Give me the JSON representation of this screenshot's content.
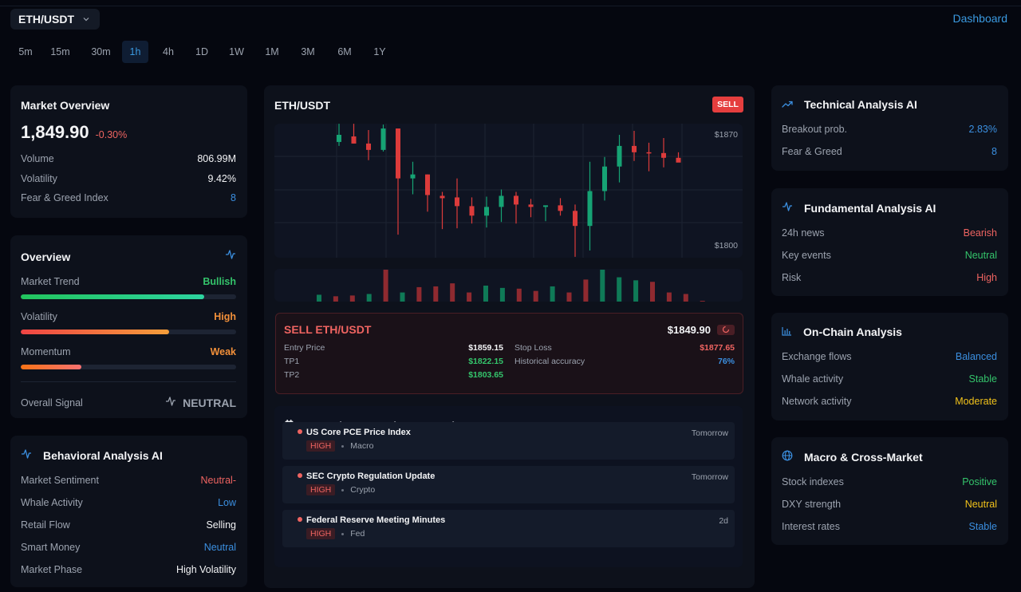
{
  "header": {
    "pair": "ETH/USDT",
    "dashboard_link": "Dashboard"
  },
  "timeframes": [
    {
      "label": "5m",
      "active": false
    },
    {
      "label": "15m",
      "active": false
    },
    {
      "label": "30m",
      "active": false
    },
    {
      "label": "1h",
      "active": true
    },
    {
      "label": "4h",
      "active": false
    },
    {
      "label": "1D",
      "active": false
    },
    {
      "label": "1W",
      "active": false
    },
    {
      "label": "1M",
      "active": false
    },
    {
      "label": "3M",
      "active": false
    },
    {
      "label": "6M",
      "active": false
    },
    {
      "label": "1Y",
      "active": false
    }
  ],
  "market_overview": {
    "title": "Market Overview",
    "price": "1,849.90",
    "change": "-0.30%",
    "rows": [
      {
        "label": "Volume",
        "value": "806.99M",
        "color": "white"
      },
      {
        "label": "Volatility",
        "value": "9.42%",
        "color": "white"
      },
      {
        "label": "Fear & Greed Index",
        "value": "8",
        "color": "blue"
      }
    ]
  },
  "overview": {
    "title": "Overview",
    "icon": "activity-icon",
    "metrics": [
      {
        "label": "Market Trend",
        "value": "Bullish",
        "color": "green",
        "percent": 85,
        "gradient": [
          "#22c55e",
          "#2dd4a0"
        ]
      },
      {
        "label": "Volatility",
        "value": "High",
        "color": "orange",
        "percent": 69,
        "gradient": [
          "#ef4444",
          "#f59e3a"
        ]
      },
      {
        "label": "Momentum",
        "value": "Weak",
        "color": "orange",
        "percent": 28,
        "gradient": [
          "#f97316",
          "#f87171"
        ]
      }
    ],
    "signal_label": "Overall Signal",
    "signal_value": "NEUTRAL"
  },
  "behavioral": {
    "title": "Behavioral Analysis AI",
    "rows": [
      {
        "label": "Market Sentiment",
        "value": "Neutral-",
        "color": "red"
      },
      {
        "label": "Whale Activity",
        "value": "Low",
        "color": "blue"
      },
      {
        "label": "Retail Flow",
        "value": "Selling",
        "color": "white"
      },
      {
        "label": "Smart Money",
        "value": "Neutral",
        "color": "blue"
      },
      {
        "label": "Market Phase",
        "value": "High Volatility",
        "color": "white"
      }
    ]
  },
  "chart": {
    "title": "ETH/USDT",
    "badge": "SELL",
    "axis_top": "$1870",
    "axis_bottom": "$1800"
  },
  "chart_data": {
    "type": "candlestick",
    "title": "ETH/USDT",
    "interval": "1h",
    "ylim": [
      1793,
      1877
    ],
    "y_ticks": [
      "$1870",
      "$1800"
    ],
    "grid": true,
    "candles": [
      {
        "o": 1865.5,
        "h": 1877.0,
        "l": 1863.0,
        "c": 1870.0
      },
      {
        "o": 1869.0,
        "h": 1877.0,
        "l": 1864.5,
        "c": 1864.5
      },
      {
        "o": 1864.5,
        "h": 1873.0,
        "l": 1854.0,
        "c": 1860.5
      },
      {
        "o": 1860.5,
        "h": 1876.5,
        "l": 1859.5,
        "c": 1874.0
      },
      {
        "o": 1874.0,
        "h": 1874.0,
        "l": 1807.0,
        "c": 1842.5
      },
      {
        "o": 1842.5,
        "h": 1853.0,
        "l": 1832.5,
        "c": 1845.0
      },
      {
        "o": 1845.0,
        "h": 1845.0,
        "l": 1821.5,
        "c": 1832.0
      },
      {
        "o": 1831.5,
        "h": 1834.0,
        "l": 1810.5,
        "c": 1830.0
      },
      {
        "o": 1830.5,
        "h": 1842.5,
        "l": 1811.0,
        "c": 1825.0
      },
      {
        "o": 1825.0,
        "h": 1830.5,
        "l": 1814.0,
        "c": 1819.0
      },
      {
        "o": 1819.0,
        "h": 1831.0,
        "l": 1811.5,
        "c": 1824.5
      },
      {
        "o": 1824.5,
        "h": 1835.5,
        "l": 1815.0,
        "c": 1831.5
      },
      {
        "o": 1831.5,
        "h": 1834.0,
        "l": 1814.0,
        "c": 1826.0
      },
      {
        "o": 1826.0,
        "h": 1829.5,
        "l": 1818.0,
        "c": 1824.5
      },
      {
        "o": 1824.5,
        "h": 1825.5,
        "l": 1815.5,
        "c": 1825.5
      },
      {
        "o": 1825.5,
        "h": 1830.0,
        "l": 1819.0,
        "c": 1822.0
      },
      {
        "o": 1822.0,
        "h": 1826.0,
        "l": 1793.0,
        "c": 1812.5
      },
      {
        "o": 1812.5,
        "h": 1853.0,
        "l": 1797.0,
        "c": 1834.5
      },
      {
        "o": 1834.5,
        "h": 1856.0,
        "l": 1828.5,
        "c": 1850.0
      },
      {
        "o": 1850.0,
        "h": 1870.0,
        "l": 1840.0,
        "c": 1863.0
      },
      {
        "o": 1863.0,
        "h": 1872.5,
        "l": 1853.5,
        "c": 1859.0
      },
      {
        "o": 1859.0,
        "h": 1865.0,
        "l": 1847.0,
        "c": 1858.5
      },
      {
        "o": 1858.5,
        "h": 1868.0,
        "l": 1849.5,
        "c": 1855.5
      },
      {
        "o": 1855.5,
        "h": 1859.0,
        "l": 1853.0,
        "c": 1852.5
      }
    ],
    "volume": [
      9,
      7,
      8,
      10,
      42,
      12,
      19,
      20,
      24,
      12,
      21,
      18,
      17,
      14,
      20,
      12,
      29,
      42,
      32,
      28,
      26,
      12,
      10,
      1
    ]
  },
  "trade_signal": {
    "title": "SELL ETH/USDT",
    "current_price": "$1849.90",
    "left": [
      {
        "label": "Entry Price",
        "value": "$1859.15",
        "color": "white"
      },
      {
        "label": "TP1",
        "value": "$1822.15",
        "color": "green"
      },
      {
        "label": "TP2",
        "value": "$1803.65",
        "color": "green"
      }
    ],
    "right": [
      {
        "label": "Stop Loss",
        "value": "$1877.65",
        "color": "red"
      },
      {
        "label": "Historical accuracy",
        "value": "76%",
        "color": "blue"
      }
    ]
  },
  "events": {
    "title": "Upcoming Events (Next 3 Days)",
    "items": [
      {
        "name": "US Core PCE Price Index",
        "when": "Tomorrow",
        "severity": "HIGH",
        "category": "Macro"
      },
      {
        "name": "SEC Crypto Regulation Update",
        "when": "Tomorrow",
        "severity": "HIGH",
        "category": "Crypto"
      },
      {
        "name": "Federal Reserve Meeting Minutes",
        "when": "2d",
        "severity": "HIGH",
        "category": "Fed"
      }
    ]
  },
  "technical": {
    "title": "Technical Analysis AI",
    "rows": [
      {
        "label": "Breakout prob.",
        "value": "2.83%",
        "color": "blue"
      },
      {
        "label": "Fear & Greed",
        "value": "8",
        "color": "blue"
      }
    ]
  },
  "fundamental": {
    "title": "Fundamental Analysis AI",
    "rows": [
      {
        "label": "24h news",
        "value": "Bearish",
        "color": "red"
      },
      {
        "label": "Key events",
        "value": "Neutral",
        "color": "green"
      },
      {
        "label": "Risk",
        "value": "High",
        "color": "red"
      }
    ]
  },
  "onchain": {
    "title": "On-Chain Analysis",
    "rows": [
      {
        "label": "Exchange flows",
        "value": "Balanced",
        "color": "blue"
      },
      {
        "label": "Whale activity",
        "value": "Stable",
        "color": "green"
      },
      {
        "label": "Network activity",
        "value": "Moderate",
        "color": "yellow"
      }
    ]
  },
  "macro": {
    "title": "Macro & Cross-Market",
    "rows": [
      {
        "label": "Stock indexes",
        "value": "Positive",
        "color": "green"
      },
      {
        "label": "DXY strength",
        "value": "Neutral",
        "color": "yellow"
      },
      {
        "label": "Interest rates",
        "value": "Stable",
        "color": "blue"
      }
    ]
  },
  "colors": {
    "accent": "#3b9ae1",
    "bull": "#16a374",
    "bear": "#dc3b3b",
    "background": "#05070f",
    "card": "#0d111b"
  }
}
